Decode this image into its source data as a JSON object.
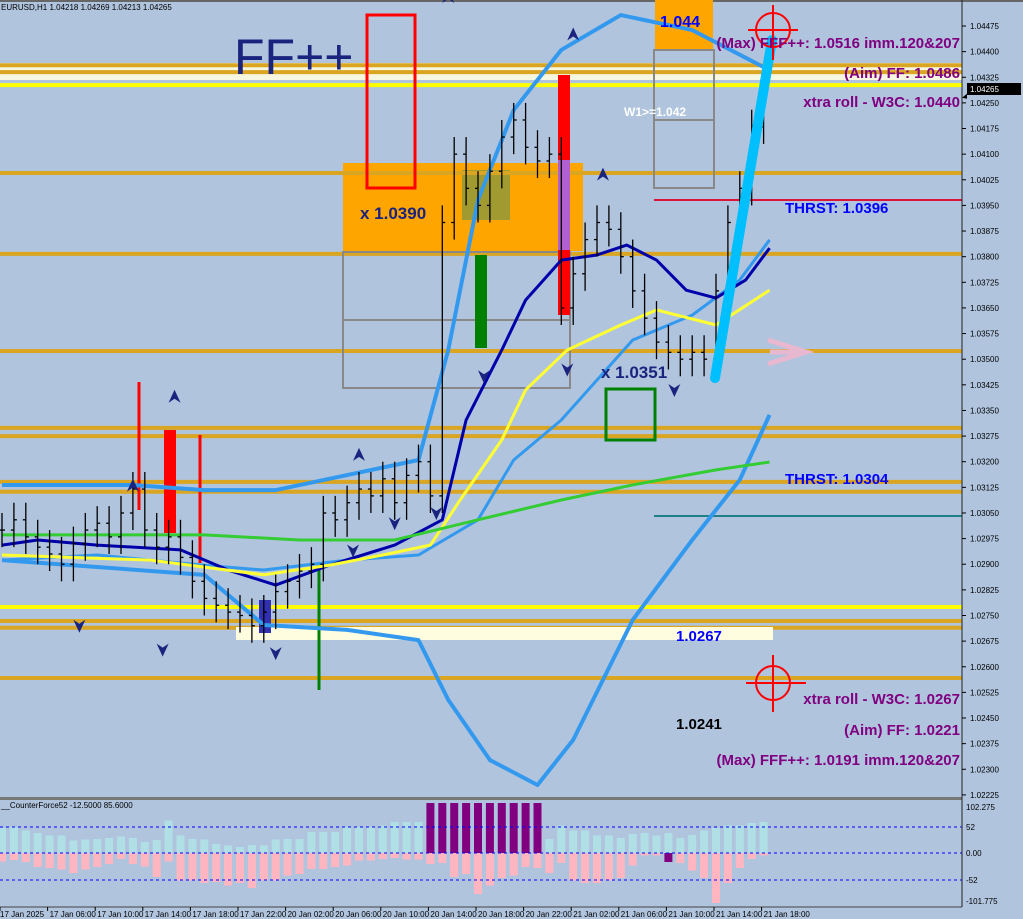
{
  "header": {
    "symbol_info": "EURUSD,H1  1.04218 1.04269 1.04213 1.04265"
  },
  "indicator": {
    "label": "__CounterForce52 -12.5000 85.6000",
    "ticks": [
      "102.275",
      "52",
      "0.00",
      "-52",
      "-101.775"
    ]
  },
  "colors": {
    "background": "#b0c4de",
    "level_orange": "#daa520",
    "level_yellow": "#ffff00",
    "upper_band": "#3399ee",
    "mid_line": "#0000aa",
    "ma_yellow": "#ffff33",
    "ma_green": "#33cc33",
    "pos_hist": "#b0e0e6",
    "neg_hist": "#ffb6c1",
    "extreme_hist": "#800080",
    "target_purple": "#800080",
    "thrst_blue": "#0000ff"
  },
  "chart_data": {
    "type": "candlestick",
    "title": "EURUSD,H1",
    "ylim": [
      1.02225,
      1.04525
    ],
    "y_ticks": [
      "1.04475",
      "1.04400",
      "1.04325",
      "1.04250",
      "1.04175",
      "1.04100",
      "1.04025",
      "1.03950",
      "1.03875",
      "1.03800",
      "1.03725",
      "1.03650",
      "1.03575",
      "1.03500",
      "1.03425",
      "1.03350",
      "1.03275",
      "1.03200",
      "1.03125",
      "1.03050",
      "1.02975",
      "1.02900",
      "1.02825",
      "1.02750",
      "1.02675",
      "1.02600",
      "1.02525",
      "1.02450",
      "1.02375",
      "1.02300",
      "1.02225"
    ],
    "current_price": "1.04265",
    "x_ticks": [
      "17 Jan 2025",
      "17 Jan 06:00",
      "17 Jan 10:00",
      "17 Jan 14:00",
      "17 Jan 18:00",
      "17 Jan 22:00",
      "20 Jan 02:00",
      "20 Jan 06:00",
      "20 Jan 10:00",
      "20 Jan 14:00",
      "20 Jan 18:00",
      "20 Jan 22:00",
      "21 Jan 02:00",
      "21 Jan 06:00",
      "21 Jan 10:00",
      "21 Jan 14:00",
      "21 Jan 18:00"
    ],
    "closes": [
      1.03,
      1.0303,
      1.0298,
      1.0295,
      1.0293,
      1.029,
      1.0296,
      1.03,
      1.0302,
      1.0298,
      1.0305,
      1.0312,
      1.03,
      1.0295,
      1.0298,
      1.0292,
      1.0285,
      1.028,
      1.0278,
      1.0276,
      1.0275,
      1.0272,
      1.0276,
      1.0282,
      1.0285,
      1.0288,
      1.029,
      1.0305,
      1.0303,
      1.0308,
      1.0312,
      1.031,
      1.0315,
      1.0308,
      1.0316,
      1.032,
      1.031,
      1.039,
      1.041,
      1.04,
      1.0395,
      1.0405,
      1.0415,
      1.042,
      1.0412,
      1.0408,
      1.041,
      1.0365,
      1.0375,
      1.0385,
      1.039,
      1.0388,
      1.038,
      1.037,
      1.0362,
      1.0355,
      1.0352,
      1.035,
      1.0352,
      1.035,
      1.037,
      1.039,
      1.04,
      1.0418,
      1.04265
    ],
    "lines": [
      {
        "role": "upper-band",
        "color": "#3399ee",
        "points": [
          [
            0,
            1.03132
          ],
          [
            11,
            1.03132
          ],
          [
            17,
            1.03117
          ],
          [
            23,
            1.03117
          ],
          [
            29,
            1.03161
          ],
          [
            35,
            1.03205
          ],
          [
            37.5,
            1.03527
          ],
          [
            40,
            1.03966
          ],
          [
            43,
            1.04229
          ],
          [
            47,
            1.04405
          ],
          [
            52,
            1.04507
          ],
          [
            58,
            1.04463
          ],
          [
            64.5,
            1.04346
          ]
        ]
      },
      {
        "role": "lower-band",
        "color": "#3399ee",
        "points": [
          [
            0,
            1.02912
          ],
          [
            17,
            1.02869
          ],
          [
            22,
            1.02722
          ],
          [
            29,
            1.02708
          ],
          [
            35,
            1.02678
          ],
          [
            37.5,
            1.02503
          ],
          [
            41,
            1.02327
          ],
          [
            45,
            1.02254
          ],
          [
            48,
            1.02386
          ],
          [
            53,
            1.02737
          ],
          [
            58,
            1.02971
          ],
          [
            62,
            1.03147
          ],
          [
            64.5,
            1.03337
          ]
        ]
      },
      {
        "role": "inner-ma",
        "color": "#3399ee",
        "points": [
          [
            0,
            1.02912
          ],
          [
            8,
            1.02927
          ],
          [
            17,
            1.02897
          ],
          [
            22,
            1.02883
          ],
          [
            29,
            1.02912
          ],
          [
            35,
            1.02927
          ],
          [
            40,
            1.0303
          ],
          [
            43,
            1.03205
          ],
          [
            47,
            1.03322
          ],
          [
            50,
            1.03439
          ],
          [
            53,
            1.03556
          ],
          [
            58,
            1.03629
          ],
          [
            62,
            1.03732
          ],
          [
            64.5,
            1.03849
          ]
        ]
      },
      {
        "role": "mid-line",
        "color": "#0000aa",
        "points": [
          [
            0,
            1.02956
          ],
          [
            3,
            1.02971
          ],
          [
            8,
            1.02956
          ],
          [
            15,
            1.02942
          ],
          [
            19,
            1.02883
          ],
          [
            23,
            1.02839
          ],
          [
            27.5,
            1.02897
          ],
          [
            33,
            1.02956
          ],
          [
            37,
            1.0303
          ],
          [
            39,
            1.03322
          ],
          [
            42,
            1.03527
          ],
          [
            44,
            1.03673
          ],
          [
            47,
            1.0379
          ],
          [
            50,
            1.03805
          ],
          [
            52.5,
            1.03834
          ],
          [
            55,
            1.0379
          ],
          [
            57.5,
            1.03702
          ],
          [
            60,
            1.03679
          ],
          [
            62.5,
            1.03732
          ],
          [
            64.5,
            1.03825
          ]
        ]
      },
      {
        "role": "ma-yellow",
        "color": "#ffff33",
        "points": [
          [
            0,
            1.02927
          ],
          [
            12.5,
            1.02912
          ],
          [
            22,
            1.02869
          ],
          [
            27.5,
            1.02897
          ],
          [
            32,
            1.02927
          ],
          [
            36,
            1.02956
          ],
          [
            38.5,
            1.03088
          ],
          [
            42,
            1.03264
          ],
          [
            44,
            1.0341
          ],
          [
            47.5,
            1.03527
          ],
          [
            52,
            1.036
          ],
          [
            55,
            1.03644
          ],
          [
            60,
            1.036
          ],
          [
            64.5,
            1.03702
          ]
        ]
      },
      {
        "role": "ma-green",
        "color": "#33cc33",
        "points": [
          [
            0,
            1.02986
          ],
          [
            17,
            1.02986
          ],
          [
            25,
            1.02971
          ],
          [
            33,
            1.02971
          ],
          [
            40,
            1.0303
          ],
          [
            47,
            1.03088
          ],
          [
            53,
            1.03132
          ],
          [
            60,
            1.03176
          ],
          [
            64.5,
            1.03199
          ]
        ]
      }
    ],
    "levels": [
      {
        "price": 1.0436,
        "color": "#daa520"
      },
      {
        "price": 1.0434,
        "color": "#daa520"
      },
      {
        "price": 1.04302,
        "color": "#ffff00"
      },
      {
        "price": 1.04045,
        "color": "#daa520"
      },
      {
        "price": 1.03808,
        "color": "#daa520"
      },
      {
        "price": 1.03524,
        "color": "#daa520"
      },
      {
        "price": 1.03299,
        "color": "#daa520"
      },
      {
        "price": 1.03275,
        "color": "#daa520"
      },
      {
        "price": 1.03141,
        "color": "#daa520"
      },
      {
        "price": 1.03112,
        "color": "#daa520"
      },
      {
        "price": 1.02775,
        "color": "#ffff00"
      },
      {
        "price": 1.02734,
        "color": "#daa520"
      },
      {
        "price": 1.02714,
        "color": "#daa520"
      },
      {
        "price": 1.02567,
        "color": "#daa520"
      }
    ],
    "histogram": {
      "positive": [
        50,
        52,
        45,
        40,
        35,
        35,
        25,
        27,
        28,
        30,
        33,
        30,
        22,
        26,
        65,
        35,
        28,
        27,
        18,
        15,
        12,
        16,
        15,
        27,
        28,
        28,
        42,
        42,
        42,
        52,
        52,
        52,
        55,
        62,
        62,
        62,
        100,
        100,
        100,
        100,
        100,
        100,
        100,
        100,
        100,
        100,
        28,
        55,
        45,
        45,
        35,
        35,
        30,
        38,
        40,
        35,
        40,
        30,
        36,
        45,
        50,
        55,
        55,
        60,
        62
      ],
      "negative": [
        -17,
        -14,
        -18,
        -28,
        -30,
        -33,
        -40,
        -33,
        -28,
        -22,
        -12,
        -22,
        -27,
        -48,
        -17,
        -55,
        -55,
        -60,
        -58,
        -65,
        -60,
        -70,
        -55,
        -55,
        -45,
        -42,
        -32,
        -32,
        -28,
        -25,
        -15,
        -15,
        -12,
        -10,
        -13,
        -13,
        -22,
        -20,
        -48,
        -42,
        -82,
        -65,
        -50,
        -45,
        -28,
        -30,
        -40,
        -20,
        -55,
        -60,
        -60,
        -55,
        -50,
        -25,
        -5,
        -5,
        -18,
        -20,
        -35,
        -50,
        -100,
        -60,
        -30,
        -12,
        -5
      ],
      "extreme_positive_bars": [
        36,
        37,
        38,
        39,
        40,
        41,
        42,
        43,
        44,
        45
      ],
      "extreme_negative_bars": [
        56
      ]
    }
  },
  "annotations": {
    "logo_text": "FF++",
    "x_high": "x 1.0390",
    "x_low": "x 1.0351",
    "weekly_top": "1.044",
    "w1_label": "W1>=1.042",
    "max_up": "(Max) FFF++: 1.0516 imm.120&207",
    "aim_up": "(Aim) FF: 1.0486",
    "xtra_up": "xtra roll - W3C: 1.0440",
    "thrst_up": "THRST: 1.0396",
    "thrst_down": "THRST: 1.0304",
    "level_1_0267": "1.0267",
    "level_1_0241": "1.0241",
    "xtra_down": "xtra roll - W3C: 1.0267",
    "aim_down": "(Aim) FF: 1.0221",
    "max_down": "(Max) FFF++: 1.0191 imm.120&207"
  }
}
